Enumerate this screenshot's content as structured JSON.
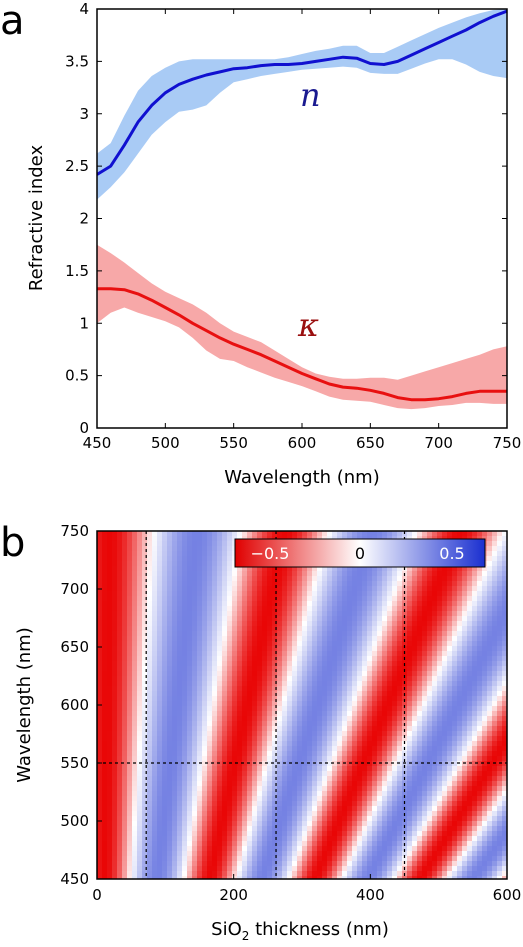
{
  "chart_data": [
    {
      "panel_label": "a",
      "type": "line",
      "xlabel": "Wavelength (nm)",
      "ylabel": "Refractive index",
      "xlim": [
        450,
        750
      ],
      "ylim": [
        0,
        4
      ],
      "xticks": [
        "450",
        "500",
        "550",
        "600",
        "650",
        "700",
        "750"
      ],
      "yticks": [
        "0",
        "0.5",
        "1",
        "1.5",
        "2",
        "2.5",
        "3",
        "3.5",
        "4"
      ],
      "series": [
        {
          "name": "n",
          "color": "#1010d0",
          "band_color": "#a9cbf5",
          "x": [
            450,
            460,
            470,
            480,
            490,
            500,
            510,
            520,
            530,
            540,
            550,
            560,
            570,
            580,
            590,
            600,
            610,
            620,
            630,
            640,
            650,
            660,
            670,
            680,
            690,
            700,
            710,
            720,
            730,
            740,
            750
          ],
          "y": [
            2.42,
            2.5,
            2.7,
            2.92,
            3.08,
            3.2,
            3.28,
            3.33,
            3.37,
            3.4,
            3.43,
            3.44,
            3.46,
            3.47,
            3.47,
            3.48,
            3.5,
            3.52,
            3.54,
            3.53,
            3.48,
            3.47,
            3.5,
            3.56,
            3.62,
            3.68,
            3.74,
            3.8,
            3.87,
            3.93,
            3.98
          ],
          "upper": [
            2.62,
            2.72,
            2.98,
            3.22,
            3.36,
            3.44,
            3.5,
            3.52,
            3.52,
            3.52,
            3.52,
            3.52,
            3.52,
            3.52,
            3.54,
            3.57,
            3.6,
            3.62,
            3.65,
            3.65,
            3.58,
            3.58,
            3.64,
            3.7,
            3.76,
            3.82,
            3.87,
            3.92,
            3.96,
            3.99,
            4.0
          ],
          "lower": [
            2.18,
            2.3,
            2.44,
            2.62,
            2.8,
            2.92,
            3.02,
            3.04,
            3.08,
            3.2,
            3.3,
            3.33,
            3.36,
            3.38,
            3.4,
            3.42,
            3.43,
            3.44,
            3.45,
            3.44,
            3.39,
            3.38,
            3.38,
            3.43,
            3.48,
            3.52,
            3.52,
            3.47,
            3.4,
            3.36,
            3.34
          ]
        },
        {
          "name": "κ",
          "color": "#e81010",
          "band_color": "#f7a8a8",
          "x": [
            450,
            460,
            470,
            480,
            490,
            500,
            510,
            520,
            530,
            540,
            550,
            560,
            570,
            580,
            590,
            600,
            610,
            620,
            630,
            640,
            650,
            660,
            670,
            680,
            690,
            700,
            710,
            720,
            730,
            740,
            750
          ],
          "y": [
            1.33,
            1.33,
            1.32,
            1.28,
            1.22,
            1.15,
            1.08,
            1.0,
            0.93,
            0.86,
            0.8,
            0.75,
            0.7,
            0.64,
            0.58,
            0.52,
            0.47,
            0.42,
            0.39,
            0.38,
            0.36,
            0.33,
            0.29,
            0.27,
            0.27,
            0.28,
            0.3,
            0.33,
            0.35,
            0.35,
            0.35
          ],
          "upper": [
            1.75,
            1.67,
            1.58,
            1.48,
            1.38,
            1.3,
            1.24,
            1.18,
            1.1,
            1.0,
            0.92,
            0.87,
            0.82,
            0.74,
            0.66,
            0.58,
            0.52,
            0.49,
            0.47,
            0.47,
            0.48,
            0.48,
            0.46,
            0.5,
            0.54,
            0.58,
            0.62,
            0.66,
            0.7,
            0.75,
            0.78
          ],
          "lower": [
            1.0,
            1.1,
            1.15,
            1.1,
            1.06,
            1.02,
            0.96,
            0.86,
            0.74,
            0.66,
            0.64,
            0.58,
            0.53,
            0.48,
            0.44,
            0.4,
            0.35,
            0.3,
            0.27,
            0.26,
            0.25,
            0.22,
            0.19,
            0.18,
            0.19,
            0.21,
            0.22,
            0.24,
            0.24,
            0.23,
            0.23
          ]
        }
      ]
    },
    {
      "panel_label": "b",
      "type": "heatmap",
      "xlabel_main": "SiO",
      "xlabel_sub": "2",
      "xlabel_rest": " thickness (nm)",
      "ylabel": "Wavelength (nm)",
      "xlim": [
        0,
        600
      ],
      "ylim": [
        450,
        750
      ],
      "xticks": [
        "0",
        "200",
        "400",
        "600"
      ],
      "yticks": [
        "450",
        "500",
        "550",
        "600",
        "650",
        "700",
        "750"
      ],
      "colorscale": {
        "min": -0.8,
        "max": 0.8,
        "negative_color": "#e80000",
        "positive_color": "#1a2fd0",
        "zero_color": "#ffffff"
      },
      "colorbar_labels": [
        "−0.5",
        "0",
        "0.5"
      ],
      "vertical_guides": [
        72,
        262,
        450
      ],
      "horizontal_guide": 550
    }
  ]
}
